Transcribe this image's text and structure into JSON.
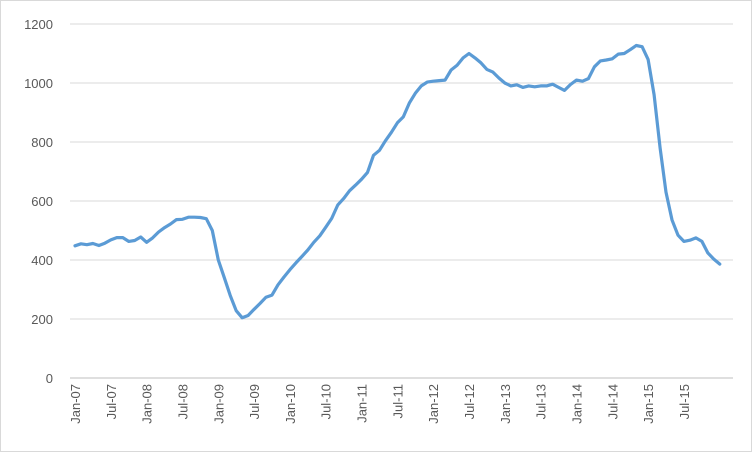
{
  "chart_data": {
    "type": "line",
    "title": "",
    "xlabel": "",
    "ylabel": "",
    "ylim": [
      0,
      1200
    ],
    "yticks": [
      0,
      200,
      400,
      600,
      800,
      1000,
      1200
    ],
    "xticks": [
      "Jan-07",
      "Jul-07",
      "Jan-08",
      "Jul-08",
      "Jan-09",
      "Jul-09",
      "Jan-10",
      "Jul-10",
      "Jan-11",
      "Jul-11",
      "Jan-12",
      "Jul-12",
      "Jan-13",
      "Jul-13",
      "Jan-14",
      "Jul-14",
      "Jan-15",
      "Jul-15"
    ],
    "x_start": "Jan-07",
    "x_end": "Dec-15",
    "grid": "horizontal",
    "legend": "none",
    "series_color": "#5b9bd5",
    "gridline_color": "#d9d9d9",
    "axis_color": "#bfbfbf",
    "series": [
      {
        "values": [
          448,
          455,
          452,
          456,
          449,
          457,
          468,
          476,
          476,
          463,
          466,
          478,
          460,
          475,
          495,
          510,
          522,
          537,
          538,
          545,
          545,
          544,
          540,
          500,
          400,
          340,
          280,
          228,
          204,
          212,
          233,
          253,
          274,
          281,
          316,
          342,
          367,
          390,
          412,
          434,
          460,
          482,
          511,
          541,
          586,
          608,
          635,
          654,
          674,
          697,
          755,
          772,
          804,
          833,
          865,
          885,
          932,
          965,
          990,
          1003,
          1006,
          1008,
          1010,
          1044,
          1060,
          1085,
          1100,
          1085,
          1068,
          1046,
          1037,
          1017,
          1000,
          990,
          994,
          985,
          990,
          987,
          990,
          990,
          996,
          985,
          975,
          995,
          1010,
          1006,
          1015,
          1055,
          1075,
          1078,
          1082,
          1098,
          1100,
          1113,
          1127,
          1123,
          1080,
          960,
          780,
          630,
          536,
          484,
          463,
          467,
          475,
          463,
          424,
          403,
          386
        ]
      }
    ]
  }
}
